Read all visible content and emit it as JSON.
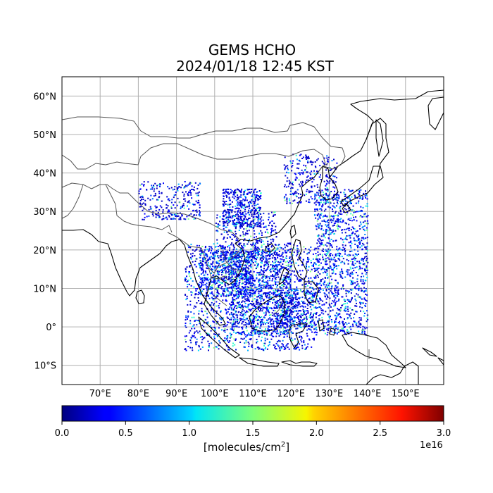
{
  "title": {
    "line1": "GEMS HCHO",
    "line2": "2024/01/18 12:45 KST"
  },
  "map": {
    "lon_range": [
      60,
      160
    ],
    "lat_range": [
      -15,
      65
    ],
    "lon_ticks": [
      {
        "value": 70,
        "label": "70°E"
      },
      {
        "value": 80,
        "label": "80°E"
      },
      {
        "value": 90,
        "label": "90°E"
      },
      {
        "value": 100,
        "label": "100°E"
      },
      {
        "value": 110,
        "label": "110°E"
      },
      {
        "value": 120,
        "label": "120°E"
      },
      {
        "value": 130,
        "label": "130°E"
      },
      {
        "value": 140,
        "label": "140°E"
      },
      {
        "value": 150,
        "label": "150°E"
      }
    ],
    "lat_ticks": [
      {
        "value": 60,
        "label": "60°N"
      },
      {
        "value": 50,
        "label": "50°N"
      },
      {
        "value": 40,
        "label": "40°N"
      },
      {
        "value": 30,
        "label": "30°N"
      },
      {
        "value": 20,
        "label": "20°N"
      },
      {
        "value": 10,
        "label": "10°N"
      },
      {
        "value": 0,
        "label": "0°"
      },
      {
        "value": -10,
        "label": "10°S"
      }
    ],
    "grid": true,
    "colors": {
      "coastline": "#000000",
      "border": "#555555",
      "grid": "#b0b0b0"
    }
  },
  "colorbar": {
    "colormap": "jet",
    "min": 0.0,
    "max": 3.0,
    "ticks": [
      "0.0",
      "0.5",
      "1.0",
      "1.5",
      "2.0",
      "2.5",
      "3.0"
    ],
    "label_text": "[molecules/cm",
    "label_sup": "2",
    "label_close": "]",
    "exponent": "1e16"
  }
}
